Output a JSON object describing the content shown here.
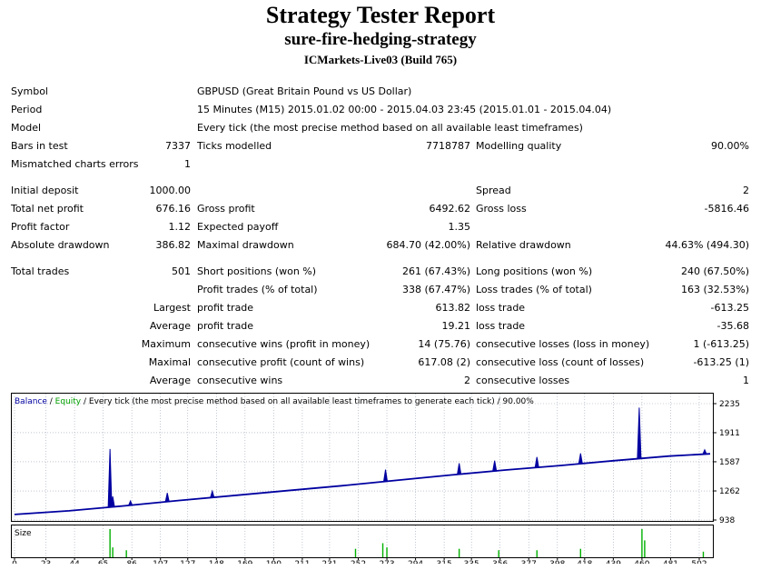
{
  "header": {
    "title": "Strategy Tester Report",
    "subtitle": "sure-fire-hedging-strategy",
    "build": "ICMarkets-Live03 (Build 765)"
  },
  "info": {
    "symbol_label": "Symbol",
    "symbol_value": "GBPUSD (Great Britain Pound vs US Dollar)",
    "period_label": "Period",
    "period_value": "15 Minutes (M15) 2015.01.02 00:00 - 2015.04.03 23:45 (2015.01.01 - 2015.04.04)",
    "model_label": "Model",
    "model_value": "Every tick (the most precise method based on all available least timeframes)",
    "bars_label": "Bars in test",
    "bars_value": "7337",
    "ticks_label": "Ticks modelled",
    "ticks_value": "7718787",
    "quality_label": "Modelling quality",
    "quality_value": "90.00%",
    "mismatch_label": "Mismatched charts errors",
    "mismatch_value": "1"
  },
  "stats": {
    "initial_deposit_label": "Initial deposit",
    "initial_deposit_value": "1000.00",
    "spread_label": "Spread",
    "spread_value": "2",
    "net_profit_label": "Total net profit",
    "net_profit_value": "676.16",
    "gross_profit_label": "Gross profit",
    "gross_profit_value": "6492.62",
    "gross_loss_label": "Gross loss",
    "gross_loss_value": "-5816.46",
    "profit_factor_label": "Profit factor",
    "profit_factor_value": "1.12",
    "expected_payoff_label": "Expected payoff",
    "expected_payoff_value": "1.35",
    "abs_dd_label": "Absolute drawdown",
    "abs_dd_value": "386.82",
    "max_dd_label": "Maximal drawdown",
    "max_dd_value": "684.70 (42.00%)",
    "rel_dd_label": "Relative drawdown",
    "rel_dd_value": "44.63% (494.30)"
  },
  "trades": {
    "total_label": "Total trades",
    "total_value": "501",
    "short_label": "Short positions (won %)",
    "short_value": "261 (67.43%)",
    "long_label": "Long positions (won %)",
    "long_value": "240 (67.50%)",
    "profit_trades_label": "Profit trades (% of total)",
    "profit_trades_value": "338 (67.47%)",
    "loss_trades_label": "Loss trades (% of total)",
    "loss_trades_value": "163 (32.53%)",
    "largest_label": "Largest",
    "largest_profit_label": "profit trade",
    "largest_profit_value": "613.82",
    "largest_loss_label": "loss trade",
    "largest_loss_value": "-613.25",
    "average_label": "Average",
    "average_profit_label": "profit trade",
    "average_profit_value": "19.21",
    "average_loss_label": "loss trade",
    "average_loss_value": "-35.68",
    "maximum_label": "Maximum",
    "max_cons_wins_label": "consecutive wins (profit in money)",
    "max_cons_wins_value": "14 (75.76)",
    "max_cons_losses_label": "consecutive losses (loss in money)",
    "max_cons_losses_value": "1 (-613.25)",
    "maximal_label": "Maximal",
    "maximal_profit_label": "consecutive profit (count of wins)",
    "maximal_profit_value": "617.08 (2)",
    "maximal_loss_label": "consecutive loss (count of losses)",
    "maximal_loss_value": "-613.25 (1)",
    "average2_label": "Average",
    "avg_cons_wins_label": "consecutive wins",
    "avg_cons_wins_value": "2",
    "avg_cons_losses_label": "consecutive losses",
    "avg_cons_losses_value": "1"
  },
  "chart_legend": {
    "balance": "Balance",
    "sep1": " / ",
    "equity": "Equity",
    "sep2": " / ",
    "rest": "Every tick (the most precise method based on all available least timeframes to generate each tick) / 90.00%"
  },
  "size_label": "Size",
  "colors": {
    "balance": "#0000a0",
    "equity": "#00a000",
    "volume": "#00b000",
    "grid": "#9aa4b4",
    "frame": "#000000"
  },
  "chart_data": {
    "type": "line",
    "ylim": [
      938,
      2235
    ],
    "y_ticks": [
      "2235",
      "1911",
      "1587",
      "1262",
      "938"
    ],
    "x_ticks": [
      "0",
      "23",
      "44",
      "65",
      "86",
      "107",
      "127",
      "148",
      "169",
      "190",
      "211",
      "231",
      "252",
      "273",
      "294",
      "315",
      "335",
      "356",
      "377",
      "398",
      "418",
      "439",
      "460",
      "481",
      "502"
    ],
    "xlim": [
      0,
      510
    ],
    "series": [
      {
        "name": "Balance",
        "x": [
          0,
          10,
          40,
          80,
          120,
          160,
          200,
          240,
          280,
          320,
          360,
          400,
          440,
          480,
          510
        ],
        "values": [
          1000,
          1010,
          1040,
          1095,
          1155,
          1210,
          1265,
          1320,
          1380,
          1440,
          1495,
          1545,
          1600,
          1650,
          1676
        ]
      }
    ],
    "equity_spikes": [
      {
        "x": 70,
        "value": 1730
      },
      {
        "x": 72,
        "value": 1200
      },
      {
        "x": 85,
        "value": 1150
      },
      {
        "x": 112,
        "value": 1240
      },
      {
        "x": 145,
        "value": 1260
      },
      {
        "x": 272,
        "value": 1500
      },
      {
        "x": 326,
        "value": 1570
      },
      {
        "x": 352,
        "value": 1600
      },
      {
        "x": 383,
        "value": 1640
      },
      {
        "x": 415,
        "value": 1680
      },
      {
        "x": 458,
        "value": 2190
      },
      {
        "x": 506,
        "value": 1720
      }
    ],
    "volume": [
      {
        "x": 70,
        "value": 1.0
      },
      {
        "x": 72,
        "value": 0.35
      },
      {
        "x": 82,
        "value": 0.25
      },
      {
        "x": 250,
        "value": 0.3
      },
      {
        "x": 270,
        "value": 0.5
      },
      {
        "x": 273,
        "value": 0.35
      },
      {
        "x": 326,
        "value": 0.3
      },
      {
        "x": 355,
        "value": 0.25
      },
      {
        "x": 383,
        "value": 0.25
      },
      {
        "x": 415,
        "value": 0.3
      },
      {
        "x": 460,
        "value": 1.0
      },
      {
        "x": 462,
        "value": 0.6
      },
      {
        "x": 505,
        "value": 0.2
      }
    ]
  }
}
